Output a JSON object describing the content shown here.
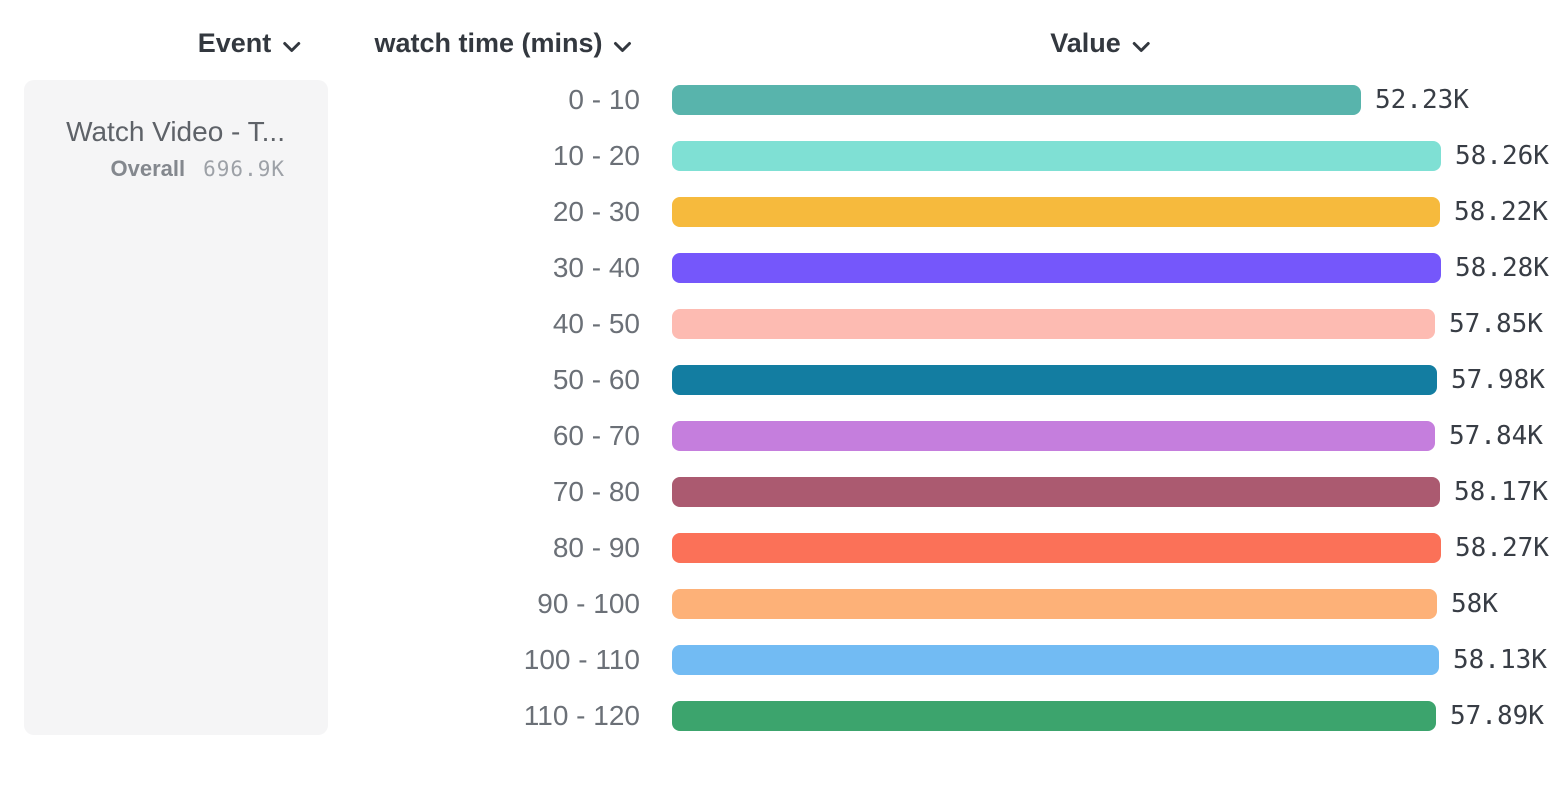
{
  "headers": {
    "event": "Event",
    "breakdown": "watch time (mins)",
    "value": "Value"
  },
  "event_card": {
    "title": "Watch Video - T...",
    "overall_label": "Overall",
    "overall_value": "696.9K"
  },
  "chart_data": {
    "type": "bar",
    "orientation": "horizontal",
    "categories": [
      "0 - 10",
      "10 - 20",
      "20 - 30",
      "30 - 40",
      "40 - 50",
      "50 - 60",
      "60 - 70",
      "70 - 80",
      "80 - 90",
      "90 - 100",
      "100 - 110",
      "110 - 120"
    ],
    "values": [
      52230,
      58260,
      58220,
      58280,
      57850,
      57980,
      57840,
      58170,
      58270,
      58000,
      58130,
      57890
    ],
    "value_labels": [
      "52.23K",
      "58.26K",
      "58.22K",
      "58.28K",
      "57.85K",
      "57.98K",
      "57.84K",
      "58.17K",
      "58.27K",
      "58K",
      "58.13K",
      "57.89K"
    ],
    "bar_colors": [
      "#58b4ac",
      "#7fe0d4",
      "#f6ba3d",
      "#7557fb",
      "#fdbbb2",
      "#137da1",
      "#c57edd",
      "#ab5a70",
      "#fb7158",
      "#fdb178",
      "#72bbf3",
      "#3ca46d"
    ],
    "value_axis_max": 58280,
    "overall_total": "696.9K",
    "grid": false,
    "legend": false
  },
  "icons": {
    "dropdown": "chevron-down-icon"
  }
}
